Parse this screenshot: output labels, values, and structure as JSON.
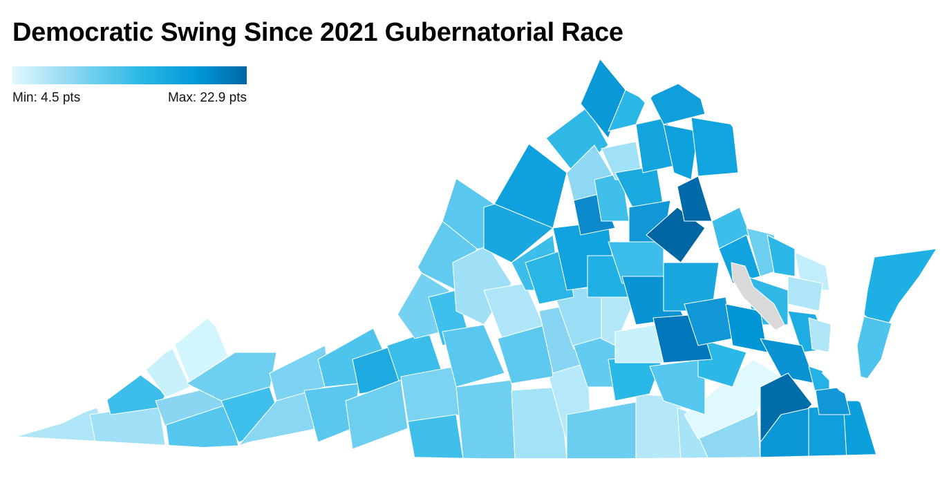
{
  "title": "Democratic Swing Since 2021 Gubernatorial Race",
  "legend": {
    "min_label": "Min: 4.5 pts",
    "max_label": "Max: 22.9 pts",
    "min_value": 4.5,
    "max_value": 22.9,
    "colors": [
      "#e0f9ff",
      "#8fd8f2",
      "#2ab8e6",
      "#0096d6",
      "#0065a3"
    ]
  },
  "map": {
    "region": "Virginia",
    "no_data_color": "#d9d9d9"
  }
}
